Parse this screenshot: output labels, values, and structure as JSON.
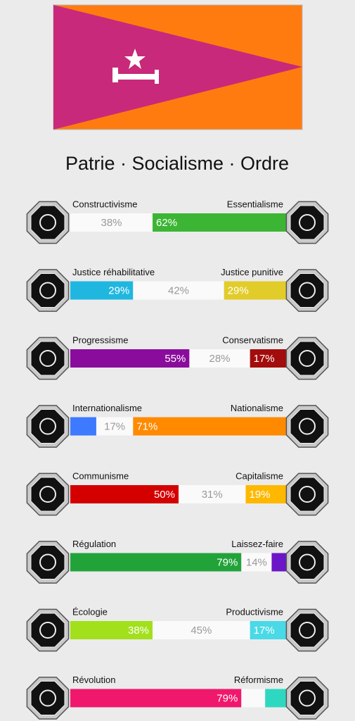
{
  "title": "Patrie · Socialisme · Ordre",
  "axes": [
    {
      "left": "Constructivisme",
      "right": "Essentialisme",
      "segments": [
        {
          "value": 38,
          "label": "38%",
          "color": "#fafafa"
        },
        {
          "value": 62,
          "label": "62%",
          "color": "#3cb534"
        }
      ]
    },
    {
      "left": "Justice réhabilitative",
      "right": "Justice punitive",
      "segments": [
        {
          "value": 29,
          "label": "29%",
          "color": "#1fb7e0"
        },
        {
          "value": 42,
          "label": "42%",
          "color": "#fafafa"
        },
        {
          "value": 29,
          "label": "29%",
          "color": "#e2cc2a"
        }
      ]
    },
    {
      "left": "Progressisme",
      "right": "Conservatisme",
      "segments": [
        {
          "value": 55,
          "label": "55%",
          "color": "#8a0c9c"
        },
        {
          "value": 28,
          "label": "28%",
          "color": "#fafafa"
        },
        {
          "value": 17,
          "label": "17%",
          "color": "#a30c0c"
        }
      ]
    },
    {
      "left": "Internationalisme",
      "right": "Nationalisme",
      "segments": [
        {
          "value": 12,
          "color": "#3d7aff"
        },
        {
          "value": 17,
          "label": "17%",
          "color": "#fafafa"
        },
        {
          "value": 71,
          "label": "71%",
          "color": "#ff8a00"
        }
      ]
    },
    {
      "left": "Communisme",
      "right": "Capitalisme",
      "segments": [
        {
          "value": 50,
          "label": "50%",
          "color": "#d40000"
        },
        {
          "value": 31,
          "label": "31%",
          "color": "#fafafa"
        },
        {
          "value": 19,
          "label": "19%",
          "color": "#ffb800"
        }
      ]
    },
    {
      "left": "Régulation",
      "right": "Laissez-faire",
      "segments": [
        {
          "value": 79,
          "label": "79%",
          "color": "#22a33a"
        },
        {
          "value": 14,
          "label": "14%",
          "color": "#fafafa"
        },
        {
          "value": 7,
          "color": "#6b16c8"
        }
      ]
    },
    {
      "left": "Écologie",
      "right": "Productivisme",
      "segments": [
        {
          "value": 38,
          "label": "38%",
          "color": "#a2e01c"
        },
        {
          "value": 45,
          "label": "45%",
          "color": "#fafafa"
        },
        {
          "value": 17,
          "label": "17%",
          "color": "#4ad9e6"
        }
      ]
    },
    {
      "left": "Révolution",
      "right": "Réformisme",
      "segments": [
        {
          "value": 79,
          "label": "79%",
          "color": "#f0186c"
        },
        {
          "value": 11,
          "color": "#fafafa"
        },
        {
          "value": 10,
          "color": "#2ed8c0"
        }
      ]
    }
  ]
}
